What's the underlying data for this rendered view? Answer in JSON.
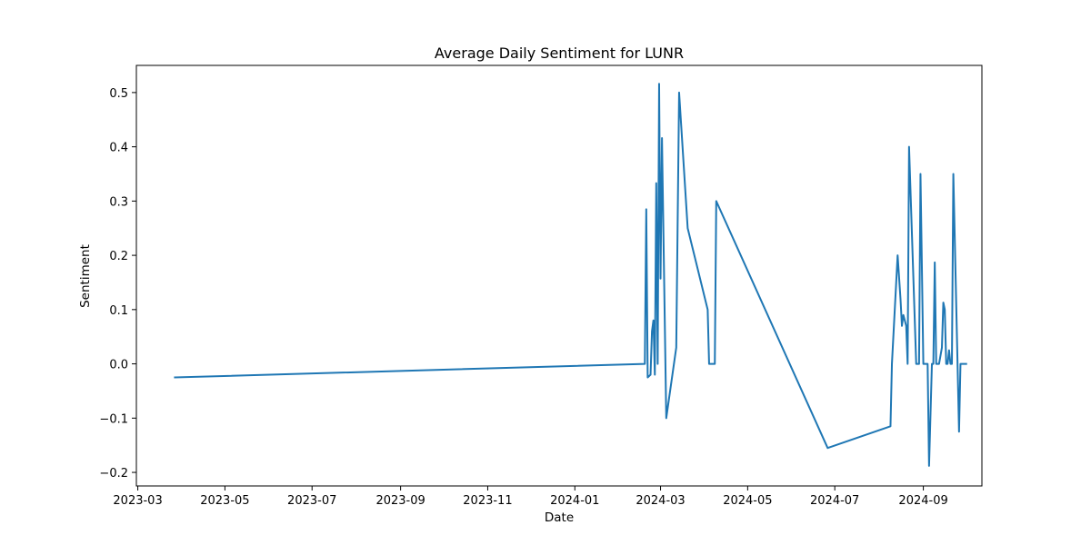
{
  "chart_data": {
    "type": "line",
    "title": "Average Daily Sentiment for LUNR",
    "xlabel": "Date",
    "ylabel": "Sentiment",
    "grid": false,
    "legend": "none",
    "color": "#1f77b4",
    "xlim": [
      "2023-02-28",
      "2024-10-12"
    ],
    "ylim": [
      -0.225,
      0.55
    ],
    "xticks": [
      "2023-03-01",
      "2023-05-01",
      "2023-07-01",
      "2023-09-01",
      "2023-11-01",
      "2024-01-01",
      "2024-03-01",
      "2024-05-01",
      "2024-07-01",
      "2024-09-01"
    ],
    "xtick_labels": [
      "2023-03",
      "2023-05",
      "2023-07",
      "2023-09",
      "2023-11",
      "2024-01",
      "2024-03",
      "2024-05",
      "2024-07",
      "2024-09"
    ],
    "yticks": [
      -0.2,
      -0.1,
      0.0,
      0.1,
      0.2,
      0.3,
      0.4,
      0.5
    ],
    "ytick_labels": [
      "−0.2",
      "−0.1",
      "0.0",
      "0.1",
      "0.2",
      "0.3",
      "0.4",
      "0.5"
    ],
    "series": [
      {
        "x": [
          "2023-03-27",
          "2024-02-19",
          "2024-02-20",
          "2024-02-21",
          "2024-02-23",
          "2024-02-24",
          "2024-02-25",
          "2024-02-26",
          "2024-02-27",
          "2024-02-28",
          "2024-02-29",
          "2024-03-01",
          "2024-03-02",
          "2024-03-05",
          "2024-03-12",
          "2024-03-14",
          "2024-03-20",
          "2024-04-03",
          "2024-04-04",
          "2024-04-08",
          "2024-04-09",
          "2024-06-26",
          "2024-08-09",
          "2024-08-10",
          "2024-08-14",
          "2024-08-16",
          "2024-08-17",
          "2024-08-18",
          "2024-08-19",
          "2024-08-20",
          "2024-08-21",
          "2024-08-22",
          "2024-08-27",
          "2024-08-29",
          "2024-08-30",
          "2024-09-01",
          "2024-09-04",
          "2024-09-05",
          "2024-09-07",
          "2024-09-08",
          "2024-09-09",
          "2024-09-10",
          "2024-09-11",
          "2024-09-12",
          "2024-09-14",
          "2024-09-15",
          "2024-09-16",
          "2024-09-17",
          "2024-09-18",
          "2024-09-19",
          "2024-09-20",
          "2024-09-21",
          "2024-09-22",
          "2024-09-26",
          "2024-09-27",
          "2024-09-28",
          "2024-09-30",
          "2024-10-01"
        ],
        "y": [
          -0.025,
          0.0,
          0.285,
          -0.025,
          -0.02,
          0.06,
          0.08,
          -0.02,
          0.333,
          0.0,
          0.516,
          0.157,
          0.416,
          -0.1,
          0.03,
          0.5,
          0.25,
          0.1,
          0.0,
          0.0,
          0.3,
          -0.155,
          -0.115,
          0.0,
          0.2,
          0.12,
          0.07,
          0.09,
          0.08,
          0.07,
          0.0,
          0.4,
          0.0,
          0.0,
          0.35,
          0.0,
          0.0,
          -0.188,
          0.0,
          0.0,
          0.187,
          0.0,
          0.0,
          0.0,
          0.03,
          0.113,
          0.1,
          0.0,
          0.0,
          0.025,
          0.0,
          0.0,
          0.35,
          -0.125,
          0.0,
          0.0,
          0.0,
          0.0
        ]
      }
    ]
  }
}
